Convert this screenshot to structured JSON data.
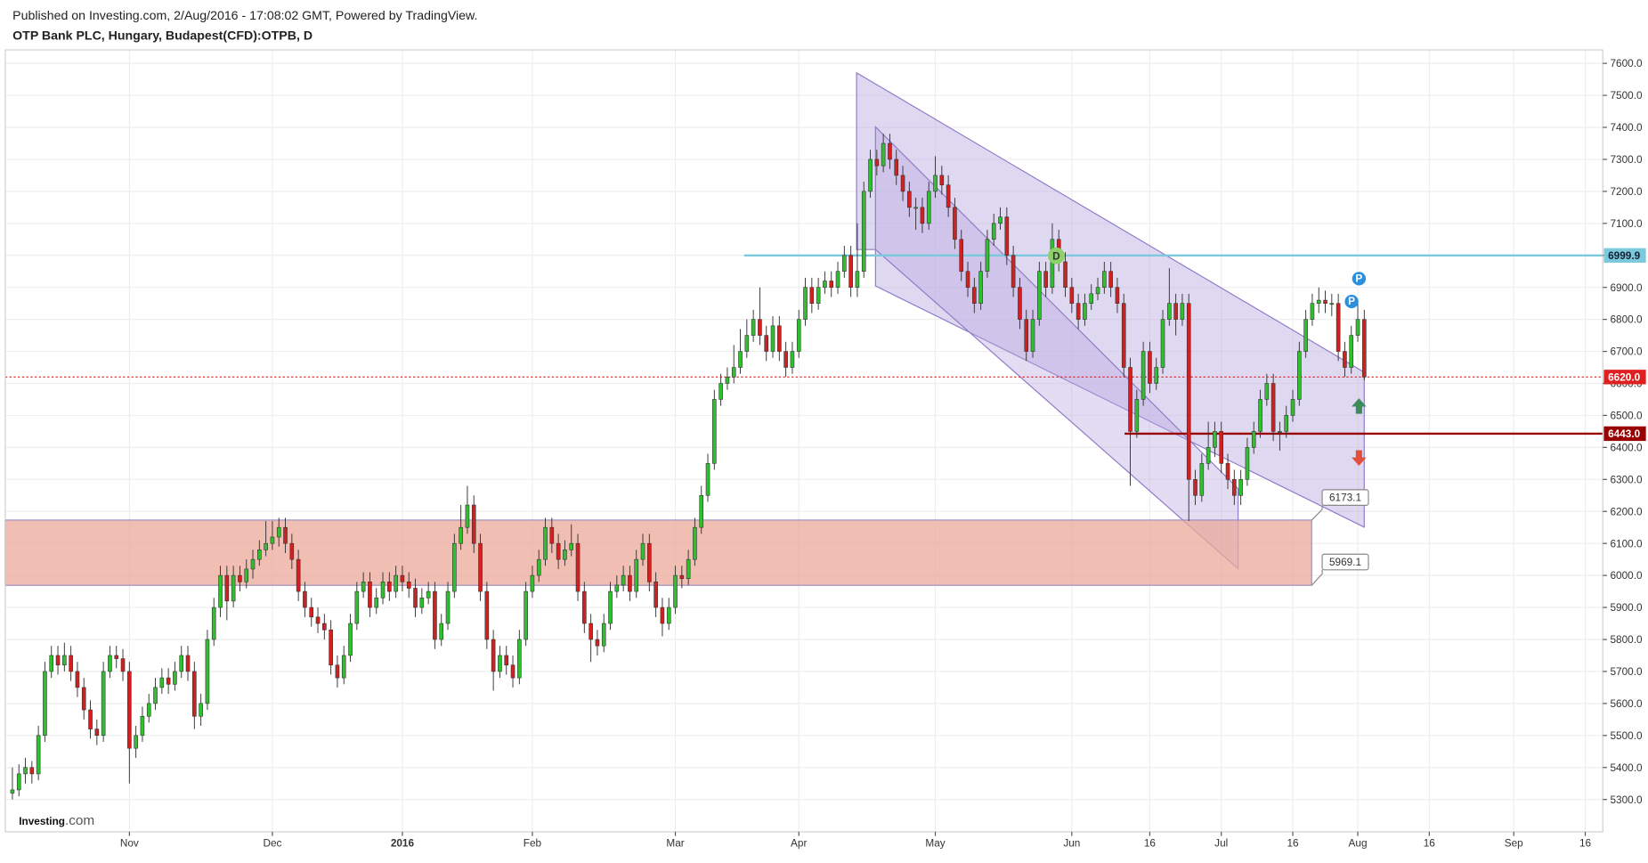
{
  "header": {
    "published": "Published on Investing.com, 2/Aug/2016 - 17:08:02 GMT, Powered by TradingView.",
    "symbol": "OTP Bank PLC, Hungary, Budapest(CFD):OTPB, D"
  },
  "logo": {
    "name": "Investing",
    "suffix": ".com"
  },
  "chart_data": {
    "type": "candlestick",
    "up_color": "#2fbf2f",
    "down_color": "#d21f1f",
    "grid": true,
    "xlim": [
      -1.1,
      244.7
    ],
    "xticks": [
      {
        "value": 18,
        "label": "Nov"
      },
      {
        "value": 40,
        "label": "Dec"
      },
      {
        "value": 60,
        "label": "2016"
      },
      {
        "value": 80,
        "label": "Feb"
      },
      {
        "value": 102,
        "label": "Mar"
      },
      {
        "value": 121,
        "label": "Apr"
      },
      {
        "value": 142,
        "label": "May"
      },
      {
        "value": 163,
        "label": "Jun"
      },
      {
        "value": 175,
        "label": "16"
      },
      {
        "value": 186,
        "label": "Jul"
      },
      {
        "value": 197,
        "label": "16"
      },
      {
        "value": 207,
        "label": "Aug"
      },
      {
        "value": 218,
        "label": "16"
      },
      {
        "value": 231,
        "label": "Sep"
      },
      {
        "value": 242,
        "label": "16"
      }
    ],
    "ylim": [
      5199,
      7642
    ],
    "yticks": [
      {
        "value": 5300,
        "label": "5300.0"
      },
      {
        "value": 5400,
        "label": "5400.0"
      },
      {
        "value": 5500,
        "label": "5500.0"
      },
      {
        "value": 5600,
        "label": "5600.0"
      },
      {
        "value": 5700,
        "label": "5700.0"
      },
      {
        "value": 5800,
        "label": "5800.0"
      },
      {
        "value": 5900,
        "label": "5900.0"
      },
      {
        "value": 6000,
        "label": "6000.0"
      },
      {
        "value": 6100,
        "label": "6100.0"
      },
      {
        "value": 6200,
        "label": "6200.0"
      },
      {
        "value": 6300,
        "label": "6300.0"
      },
      {
        "value": 6400,
        "label": "6400.0"
      },
      {
        "value": 6500,
        "label": "6500.0"
      },
      {
        "value": 6600,
        "label": "6600.0"
      },
      {
        "value": 6700,
        "label": "6700.0"
      },
      {
        "value": 6800,
        "label": "6800.0"
      },
      {
        "value": 6900,
        "label": "6900.0"
      },
      {
        "value": 7000,
        "label": "7000.0"
      },
      {
        "value": 7100,
        "label": "7100.0"
      },
      {
        "value": 7200,
        "label": "7200.0"
      },
      {
        "value": 7300,
        "label": "7300.0"
      },
      {
        "value": 7400,
        "label": "7400.0"
      },
      {
        "value": 7500,
        "label": "7500.0"
      },
      {
        "value": 7600,
        "label": "7600.0"
      }
    ],
    "open": [
      5320,
      5330,
      5380,
      5400,
      5380,
      5500,
      5700,
      5750,
      5720,
      5750,
      5700,
      5650,
      5580,
      5520,
      5500,
      5700,
      5750,
      5740,
      5700,
      5460,
      5500,
      5560,
      5600,
      5650,
      5680,
      5660,
      5700,
      5750,
      5700,
      5560,
      5600,
      5800,
      5900,
      6000,
      5920,
      6000,
      5980,
      6020,
      6050,
      6080,
      6100,
      6120,
      6150,
      6100,
      6050,
      5950,
      5900,
      5870,
      5850,
      5830,
      5720,
      5680,
      5750,
      5850,
      5950,
      5980,
      5900,
      5930,
      5980,
      5950,
      6000,
      5980,
      5960,
      5900,
      5930,
      5950,
      5800,
      5850,
      5950,
      6100,
      6150,
      6220,
      6100,
      5950,
      5800,
      5700,
      5750,
      5720,
      5680,
      5800,
      5950,
      6000,
      6050,
      6150,
      6100,
      6050,
      6080,
      6100,
      5950,
      5850,
      5800,
      5780,
      5850,
      5950,
      5970,
      6000,
      5950,
      6050,
      6100,
      5980,
      5900,
      5850,
      5900,
      6000,
      5990,
      6050,
      6150,
      6250,
      6350,
      6550,
      6600,
      6620,
      6650,
      6700,
      6750,
      6800,
      6750,
      6700,
      6780,
      6700,
      6650,
      6700,
      6800,
      6900,
      6850,
      6900,
      6920,
      6900,
      6950,
      7000,
      6900,
      6950,
      7200,
      7300,
      7280,
      7350,
      7300,
      7250,
      7200,
      7150,
      7150,
      7100,
      7200,
      7250,
      7220,
      7150,
      7050,
      6950,
      6900,
      6850,
      6950,
      7050,
      7100,
      7120,
      7000,
      6900,
      6800,
      6700,
      6800,
      6950,
      6900,
      7050,
      6980,
      6900,
      6850,
      6800,
      6850,
      6880,
      6900,
      6950,
      6900,
      6850,
      6650,
      6450,
      6550,
      6700,
      6600,
      6650,
      6800,
      6850,
      6800,
      6850,
      6300,
      6250,
      6350,
      6400,
      6450,
      6350,
      6300,
      6250,
      6300,
      6400,
      6450,
      6550,
      6600,
      6450,
      6450,
      6500,
      6550,
      6700,
      6800,
      6850,
      6860,
      6850,
      6850,
      6700,
      6650,
      6750,
      6800
    ],
    "high": [
      5400,
      5410,
      5430,
      5420,
      5530,
      5730,
      5780,
      5780,
      5790,
      5780,
      5730,
      5680,
      5610,
      5550,
      5730,
      5780,
      5780,
      5770,
      5730,
      5530,
      5590,
      5630,
      5680,
      5710,
      5710,
      5730,
      5780,
      5780,
      5730,
      5630,
      5830,
      5930,
      6030,
      6030,
      6030,
      6030,
      6050,
      6080,
      6110,
      6170,
      6170,
      6180,
      6180,
      6130,
      6080,
      5980,
      5930,
      5900,
      5880,
      5860,
      5750,
      5780,
      5880,
      5980,
      6010,
      6010,
      5960,
      6010,
      6010,
      6030,
      6030,
      6010,
      5990,
      5960,
      5980,
      5980,
      5880,
      5980,
      6130,
      6220,
      6280,
      6250,
      6130,
      5980,
      5830,
      5780,
      5780,
      5750,
      5830,
      5980,
      6030,
      6080,
      6180,
      6180,
      6130,
      6110,
      6160,
      6130,
      5980,
      5880,
      5830,
      5880,
      5980,
      6000,
      6030,
      6030,
      6080,
      6130,
      6130,
      6010,
      5930,
      5930,
      6030,
      6030,
      6080,
      6180,
      6280,
      6380,
      6580,
      6630,
      6650,
      6720,
      6770,
      6800,
      6830,
      6900,
      6780,
      6810,
      6810,
      6730,
      6730,
      6830,
      6930,
      6930,
      6930,
      6950,
      6950,
      6980,
      7030,
      7030,
      7100,
      7230,
      7330,
      7330,
      7380,
      7380,
      7330,
      7280,
      7230,
      7180,
      7180,
      7230,
      7310,
      7280,
      7250,
      7180,
      7080,
      6980,
      6930,
      6980,
      7080,
      7130,
      7150,
      7150,
      7030,
      6930,
      6830,
      6830,
      6980,
      6980,
      7100,
      7080,
      7010,
      6930,
      6880,
      6880,
      6910,
      6930,
      6980,
      6980,
      6930,
      6880,
      6680,
      6580,
      6730,
      6730,
      6680,
      6830,
      6960,
      6880,
      6880,
      6880,
      6330,
      6380,
      6480,
      6480,
      6480,
      6380,
      6330,
      6330,
      6430,
      6480,
      6580,
      6630,
      6630,
      6480,
      6530,
      6580,
      6730,
      6830,
      6880,
      6900,
      6890,
      6880,
      6880,
      6730,
      6780,
      6860,
      6830
    ],
    "low": [
      5300,
      5310,
      5350,
      5350,
      5360,
      5480,
      5680,
      5690,
      5700,
      5670,
      5620,
      5550,
      5490,
      5470,
      5480,
      5680,
      5710,
      5670,
      5350,
      5430,
      5480,
      5540,
      5580,
      5630,
      5630,
      5640,
      5680,
      5670,
      5520,
      5530,
      5580,
      5780,
      5870,
      5860,
      5900,
      5950,
      5960,
      5990,
      6030,
      6060,
      6080,
      6090,
      6070,
      6020,
      5920,
      5870,
      5840,
      5820,
      5800,
      5690,
      5650,
      5660,
      5730,
      5830,
      5930,
      5870,
      5880,
      5910,
      5920,
      5930,
      5950,
      5930,
      5870,
      5880,
      5910,
      5770,
      5780,
      5830,
      5930,
      6080,
      6130,
      6070,
      5920,
      5770,
      5640,
      5680,
      5690,
      5650,
      5660,
      5780,
      5930,
      5980,
      6030,
      6070,
      6020,
      6030,
      6060,
      5920,
      5820,
      5730,
      5750,
      5760,
      5830,
      5930,
      5950,
      5920,
      5930,
      6030,
      5950,
      5870,
      5810,
      5830,
      5880,
      5960,
      5970,
      6030,
      6130,
      6230,
      6330,
      6530,
      6580,
      6600,
      6630,
      6680,
      6730,
      6720,
      6670,
      6680,
      6670,
      6620,
      6630,
      6680,
      6780,
      6820,
      6830,
      6880,
      6870,
      6880,
      6930,
      6870,
      6870,
      6930,
      7180,
      7250,
      7260,
      7270,
      7220,
      7170,
      7120,
      7080,
      7070,
      7080,
      7180,
      7190,
      7120,
      7020,
      6920,
      6870,
      6820,
      6830,
      6930,
      7030,
      7080,
      6970,
      6870,
      6770,
      6670,
      6680,
      6780,
      6870,
      6880,
      6950,
      6870,
      6820,
      6770,
      6780,
      6830,
      6860,
      6880,
      6870,
      6820,
      6620,
      6280,
      6430,
      6530,
      6570,
      6580,
      6630,
      6780,
      6750,
      6780,
      6170,
      6220,
      6230,
      6330,
      6370,
      6320,
      6270,
      6220,
      6220,
      6280,
      6380,
      6430,
      6530,
      6420,
      6390,
      6430,
      6480,
      6530,
      6680,
      6780,
      6820,
      6820,
      6810,
      6670,
      6620,
      6630,
      6730,
      6610
    ],
    "close": [
      5330,
      5380,
      5400,
      5380,
      5500,
      5700,
      5750,
      5720,
      5750,
      5700,
      5650,
      5580,
      5520,
      5500,
      5700,
      5750,
      5740,
      5700,
      5460,
      5500,
      5560,
      5600,
      5650,
      5680,
      5660,
      5700,
      5750,
      5700,
      5560,
      5600,
      5800,
      5900,
      6000,
      5920,
      6000,
      5980,
      6020,
      6050,
      6080,
      6100,
      6120,
      6150,
      6100,
      6050,
      5950,
      5900,
      5870,
      5850,
      5830,
      5720,
      5680,
      5750,
      5850,
      5950,
      5980,
      5900,
      5930,
      5980,
      5950,
      6000,
      5980,
      5960,
      5900,
      5930,
      5950,
      5800,
      5850,
      5950,
      6100,
      6150,
      6220,
      6100,
      5950,
      5800,
      5700,
      5750,
      5720,
      5680,
      5800,
      5950,
      6000,
      6050,
      6150,
      6100,
      6050,
      6080,
      6100,
      5950,
      5850,
      5800,
      5780,
      5850,
      5950,
      5970,
      6000,
      5950,
      6050,
      6100,
      5980,
      5900,
      5850,
      5900,
      6000,
      5990,
      6050,
      6150,
      6250,
      6350,
      6550,
      6600,
      6620,
      6650,
      6700,
      6750,
      6800,
      6750,
      6700,
      6780,
      6700,
      6650,
      6700,
      6800,
      6900,
      6850,
      6900,
      6920,
      6900,
      6950,
      7000,
      6900,
      6950,
      7200,
      7300,
      7280,
      7350,
      7300,
      7250,
      7200,
      7150,
      7150,
      7100,
      7200,
      7250,
      7220,
      7150,
      7050,
      6950,
      6900,
      6850,
      6950,
      7050,
      7100,
      7120,
      7000,
      6900,
      6800,
      6700,
      6800,
      6950,
      6900,
      7050,
      6980,
      6900,
      6850,
      6800,
      6850,
      6880,
      6900,
      6950,
      6900,
      6850,
      6650,
      6450,
      6550,
      6700,
      6600,
      6650,
      6800,
      6850,
      6800,
      6850,
      6300,
      6250,
      6350,
      6400,
      6450,
      6350,
      6300,
      6250,
      6300,
      6400,
      6450,
      6550,
      6600,
      6450,
      6450,
      6500,
      6550,
      6700,
      6800,
      6850,
      6860,
      6850,
      6850,
      6700,
      6650,
      6750,
      6800,
      6620
    ],
    "levels": [
      {
        "value": 6999.9,
        "color": "#7cc8dc",
        "style": "solid"
      },
      {
        "value": 6620,
        "label": "6620.0",
        "color": "#e02020",
        "style": "dotted"
      },
      {
        "value": 6443,
        "label": "6443.0",
        "color": "#990000",
        "style": "solid"
      }
    ],
    "zone": {
      "low": 5969.1,
      "high": 6173.1,
      "color": "#eba89a"
    },
    "markers": {
      "d": "D",
      "p": "P"
    }
  }
}
